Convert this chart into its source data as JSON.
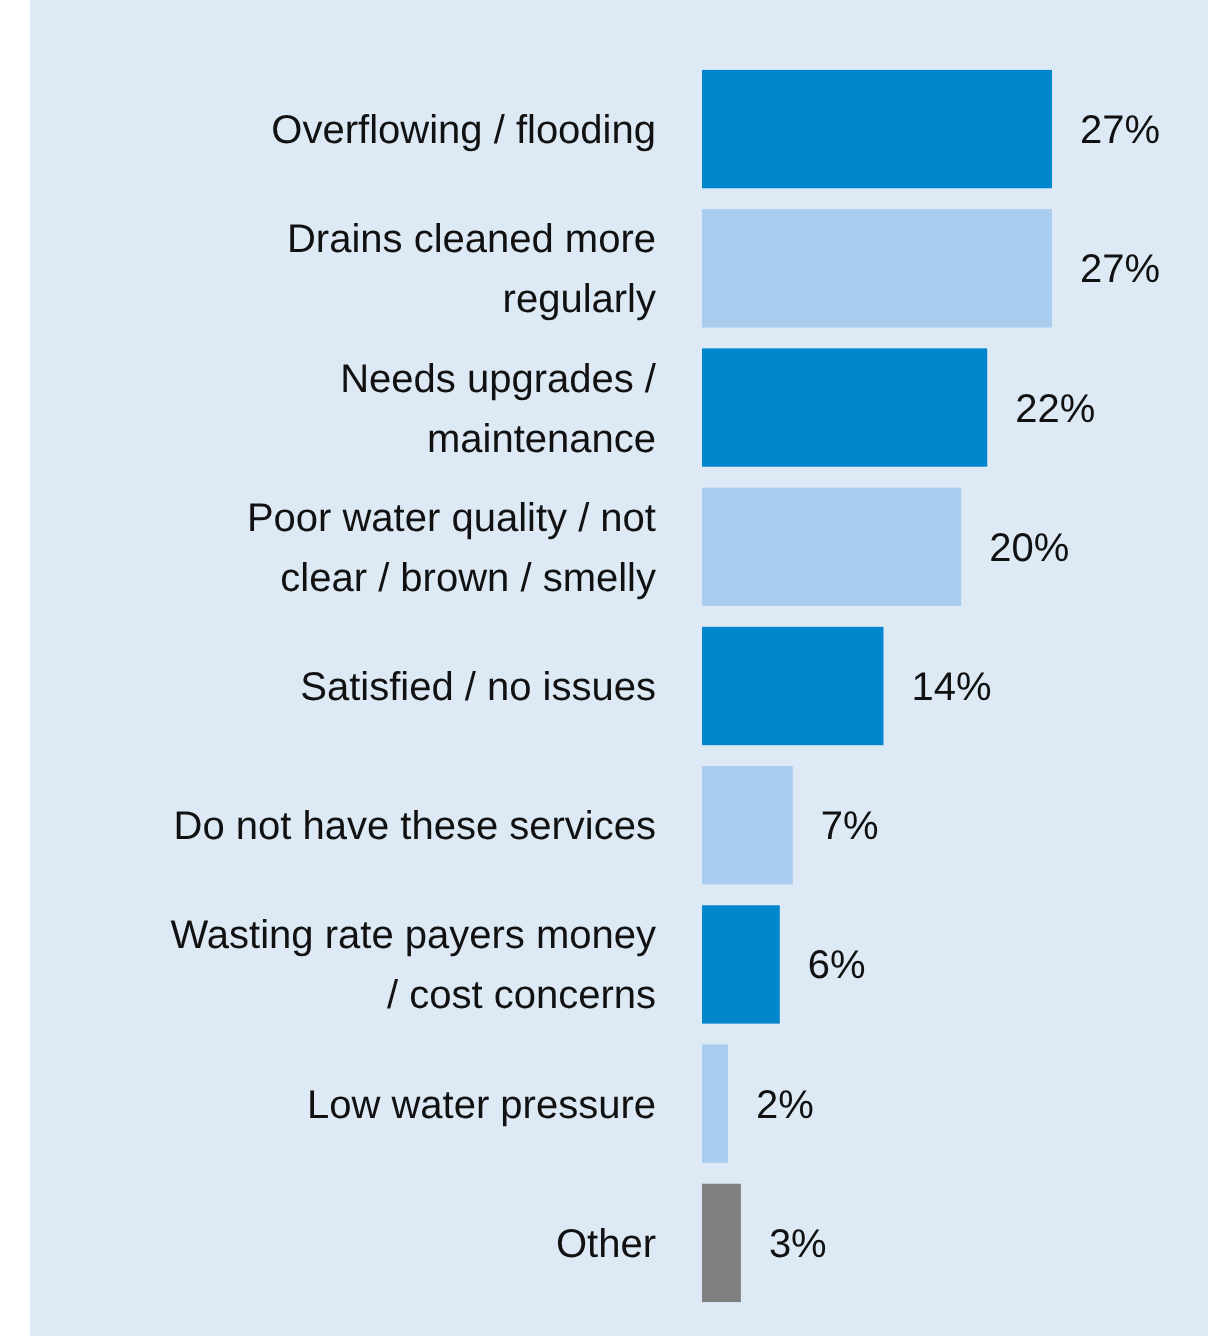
{
  "chart_data": {
    "type": "bar",
    "orientation": "horizontal",
    "categories": [
      "Overflowing / flooding",
      "Drains cleaned more regularly",
      "Needs upgrades / maintenance",
      "Poor water quality / not clear / brown / smelly",
      "Satisfied / no issues",
      "Do not have these services",
      "Wasting rate payers money / cost concerns",
      "Low water pressure",
      "Other"
    ],
    "values": [
      27,
      27,
      22,
      20,
      14,
      7,
      6,
      2,
      3
    ],
    "colors": [
      "#0086cc",
      "#a9cdee",
      "#0086cc",
      "#a9cdee",
      "#0086cc",
      "#a9cdee",
      "#0086cc",
      "#a9cdee",
      "#7f7f7f"
    ],
    "value_labels": [
      "27%",
      "27%",
      "22%",
      "20%",
      "14%",
      "7%",
      "6%",
      "2%",
      "3%"
    ]
  }
}
